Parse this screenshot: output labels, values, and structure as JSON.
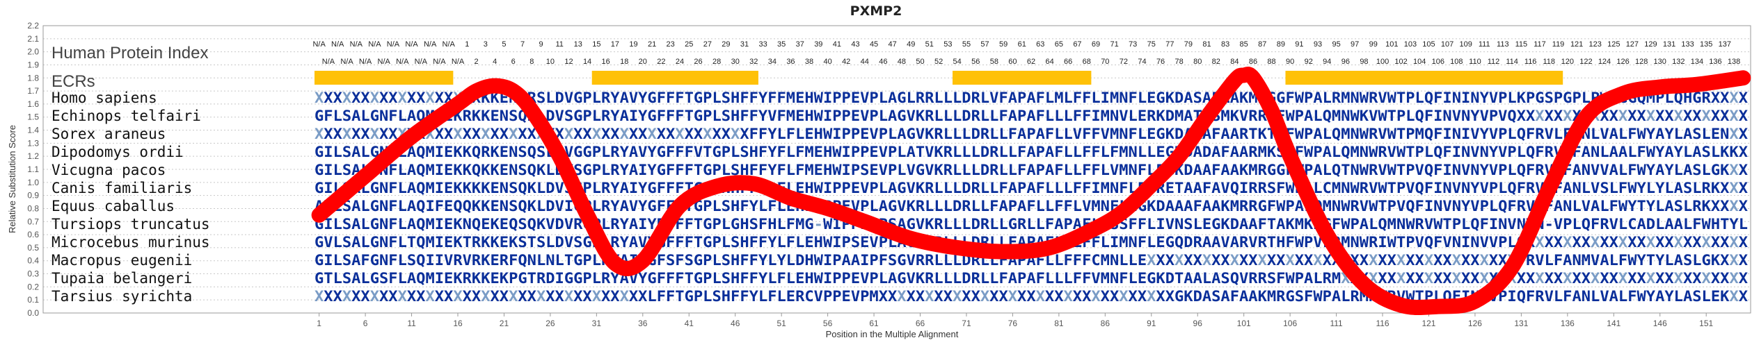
{
  "chart_data": {
    "type": "sequence-alignment",
    "title": "PXMP2",
    "xlabel": "Position in the Multiple Alignment",
    "ylabel": "Relative Substitution Score",
    "ylim": [
      0.0,
      2.2
    ],
    "y_ticks": [
      "0.0",
      "0.1",
      "0.2",
      "0.3",
      "0.4",
      "0.5",
      "0.6",
      "0.7",
      "0.8",
      "0.9",
      "1.0",
      "1.1",
      "1.2",
      "1.3",
      "1.4",
      "1.5",
      "1.6",
      "1.7",
      "1.8",
      "1.9",
      "2.0",
      "2.1",
      "2.2"
    ],
    "xlim": [
      1,
      155
    ],
    "x_ticks": [
      "1",
      "6",
      "11",
      "16",
      "21",
      "26",
      "31",
      "36",
      "41",
      "46",
      "51",
      "56",
      "61",
      "66",
      "71",
      "76",
      "81",
      "86",
      "91",
      "96",
      "101",
      "106",
      "111",
      "116",
      "121",
      "126",
      "131",
      "136",
      "141",
      "146",
      "151"
    ],
    "row_headers": {
      "index": "Human Protein Index",
      "ecrs": "ECRs"
    },
    "index_row_top": [
      "N/A",
      "N/A",
      "N/A",
      "N/A",
      "N/A",
      "N/A",
      "N/A",
      "N/A",
      "1",
      "3",
      "5",
      "7",
      "9",
      "11",
      "13",
      "15",
      "17",
      "19",
      "21",
      "23",
      "25",
      "27",
      "29",
      "31",
      "33",
      "35",
      "37",
      "39",
      "41",
      "43",
      "45",
      "47",
      "49",
      "51",
      "53",
      "55",
      "57",
      "59",
      "61",
      "63",
      "65",
      "67",
      "69",
      "71",
      "73",
      "75",
      "77",
      "79",
      "81",
      "83",
      "85",
      "87",
      "89",
      "91",
      "93",
      "95",
      "97",
      "99",
      "101",
      "103",
      "105",
      "107",
      "109",
      "111",
      "113",
      "115",
      "117",
      "119",
      "121",
      "123",
      "125",
      "127",
      "129",
      "131",
      "133",
      "135",
      "137"
    ],
    "index_row_bottom": [
      "N/A",
      "N/A",
      "N/A",
      "N/A",
      "N/A",
      "N/A",
      "N/A",
      "N/A",
      "2",
      "4",
      "6",
      "8",
      "10",
      "12",
      "14",
      "16",
      "18",
      "20",
      "22",
      "24",
      "26",
      "28",
      "30",
      "32",
      "34",
      "36",
      "38",
      "40",
      "42",
      "44",
      "46",
      "48",
      "50",
      "52",
      "54",
      "56",
      "58",
      "60",
      "62",
      "64",
      "66",
      "68",
      "70",
      "72",
      "74",
      "76",
      "78",
      "80",
      "82",
      "84",
      "86",
      "88",
      "90",
      "92",
      "94",
      "96",
      "98",
      "100",
      "102",
      "104",
      "106",
      "108",
      "110",
      "112",
      "114",
      "116",
      "118",
      "120",
      "122",
      "124",
      "126",
      "128",
      "130",
      "132",
      "134",
      "136",
      "138"
    ],
    "ecr_segments": [
      [
        1,
        15
      ],
      [
        31,
        48
      ],
      [
        70,
        84
      ],
      [
        106,
        135
      ]
    ],
    "series": [
      {
        "name": "Homo sapiens",
        "sequence": "XXXXXXXXXXXXXXXXXXKKENSRSLDVGPLRYAVYGFFFTGPLSHFFYFFMEHWIPPEVPLAGLRRLLLDRLVFAPAFLMLFFLIMNFLEGKDASAFAAKMRGGFWPALRMNWRVWTPLQFININYVPLKPGSPGPLPWGGGQMPLQHGR"
      },
      {
        "name": "Echinops telfairi",
        "sequence": "GFLSALGNFLAQMIEKRKKENSQDLDVSGPLRYAIYGFFFTGPLSHFFYVFMEHWIPPEVPLAGVKRLLLDRLLFAPAFLLLFFIMNVLERKDMATFSMKVRRGFWPALQMNWKVWTPLQFINVNYVPVQXXXXXXXXXXXXXXXXXXXX"
      },
      {
        "name": "Sorex araneus",
        "sequence": "XXXXXXXXXXXXXXXXXXXXXXXXXXXXXXXXXXXXXXXXXXXXXXXFFYLFLEHWIPPEVPLAGVKRLLLDRLLFAPAFLLVFFVMNFLEGKDAAAFAARTKTGFWPALQMNWRVWTPMQFINIVYVPLQFRVLFANLVALFWYAYLASLEN"
      },
      {
        "name": "Dipodomys ordii",
        "sequence": "GILSALGNLLAQMIEKKQRKENSQSLDVGGPLRYAVYGFFFVTGPLSHFYFLFMEHWIPPEVPLATVKRLLLDRLLFAPAFLLFFLFMNLLEGKDADAFAARMKSGFWPALQMNWRVWTPLQFINVNYVPLQFRVLFANLAALFWYAYLASLKK"
      },
      {
        "name": "Vicugna pacos",
        "sequence": "GILSALGNFLAQMIEKKQKKENSQKLDVSGPLRYAIYGFFFTGPLSHFFYFLFMEHWIPSEVPLVGVKRLLLDRLLFAPAFLLFFLVMNFLEGKDAAFAAKMRGGFWPALQTNWRVWTPVQFINVNYVPLQFRVLFANVVALFWYAYLASLGK"
      },
      {
        "name": "Canis familiaris",
        "sequence": "GILSALGNFLAQMIEKKKKENSQKLDVSGPLRYAIYGFFFTGPLNHFFYLFLEHWIPPEVPLAGVKRLLLDRLLFAPAFLLLFFIMNFLEGRETAAFAVQIRRSFWPALCMNWRVWTPVQFINVNYVPLQFRVLFANLVSLFWYLYLASLRK"
      },
      {
        "name": "Equus caballus",
        "sequence": "AVLSALGNFLAQIFEQQKKENSQKLDVIGPLRYAVYGFFFTGPLSHFYLFLEHWIPPEVPLAGVKRLLLDRLLFAPAFLLFFLVMNFLEGKDAAAFAAKMRRGFWPALQMNWRVWTPVQFINVNYVPLQFRVLFANLVALFWYTYLASLRK"
      },
      {
        "name": "Tursiops truncatus",
        "sequence": "GILSALGNFLAQMIEKNQEKEQSQKVDVRGPLRYAIYRFFFTGPLGHSFHLFMG-WIPPEAPSAGVKRLLLDRLLGRLLFAPAFLLSSFFLIVNSLEGKDAAFTAKMKRGFWPALQMNWRVWTPLQFINVNVN-VPLQFRVLCADLAALFWHTYLASLRK"
      },
      {
        "name": "Microcebus murinus",
        "sequence": "GVLSALGNFLTQMIEKTRKKEKSTSLDVSGPLRYAVYGFFFTGPLSHFFYLFLEHWIPSEVPLAGVKRLLLDRLLFAPAFLLLFFLIMNFLEGQDRAAVARVRTHFWPVLRMNWRIWTPVQFVNINVVPLQXXXXXXXXXXXXXXXXXXXXXXXX"
      },
      {
        "name": "Macropus eugenii",
        "sequence": "GILSAFGNFLSQIIVRVRKERFQNLNLTGPLRYAIYGFSFSGPLSHFFYLYLDHWIPAAIPFSGVRRLLLDRLLFAPAFLLFFFCMNLLEXXXXXXXXXXXXXXXXXXXXXXXXXXXXXXXXXXXXXXXXFRVLFANMVALFWYTYLASLGK"
      },
      {
        "name": "Tupaia belangeri",
        "sequence": "GTLSALGSFLAQMIEKRKKEKPGTRDIGGPLRYAVYGFFFTGPLSHFFYLFLEHWIPPEVPLAGVKRLLLDRLLFAPAFLLLFFVMNFLEGKDTAALASQVRRSFWPALRMXXXXXXXXXXXXXXXXXXXXXXXXXXXXXXXXXXXXXXXXXXX"
      },
      {
        "name": "Tarsius syrichta",
        "sequence": "XXXXXXXXXXXXXXXXXXXXXXXXXXXXXXXXXXXXLFFTGPLSHFFYLFLERCVPPEVPMXXXXXXXXXXXXXXXXXXXXXXXXXXXXXXXXGKDASAFAAKMRGSFWPALRMNWRVWTPLQFINYVPIQFRVLFANLVALFWYAYLASLEK"
      }
    ],
    "score_curve": {
      "name": "",
      "x": [
        1,
        6,
        11,
        16,
        18,
        20,
        22,
        24,
        27,
        30,
        33,
        36,
        40,
        44,
        48,
        52,
        56,
        60,
        65,
        70,
        75,
        80,
        85,
        88,
        91,
        94,
        97,
        100,
        101,
        102,
        104,
        106,
        110,
        114,
        118,
        122,
        126,
        130,
        134,
        138,
        142,
        146,
        150,
        155
      ],
      "y": [
        0.75,
        1.05,
        1.35,
        1.6,
        1.7,
        1.74,
        1.7,
        1.55,
        1.2,
        0.75,
        0.38,
        0.4,
        0.82,
        0.97,
        0.99,
        0.88,
        0.8,
        0.7,
        0.57,
        0.5,
        0.47,
        0.5,
        0.65,
        0.78,
        0.98,
        1.2,
        1.5,
        1.78,
        1.82,
        1.8,
        1.55,
        1.2,
        0.6,
        0.22,
        0.06,
        0.05,
        0.09,
        0.35,
        0.95,
        1.5,
        1.68,
        1.73,
        1.75,
        1.8
      ],
      "color": "#ff0000"
    },
    "colors": {
      "ecr": "#ffc107",
      "curve": "#ff0000",
      "conserved": "#0b2f9a",
      "variable": "#7a9cc6",
      "grid": "#c8c8c8"
    }
  }
}
